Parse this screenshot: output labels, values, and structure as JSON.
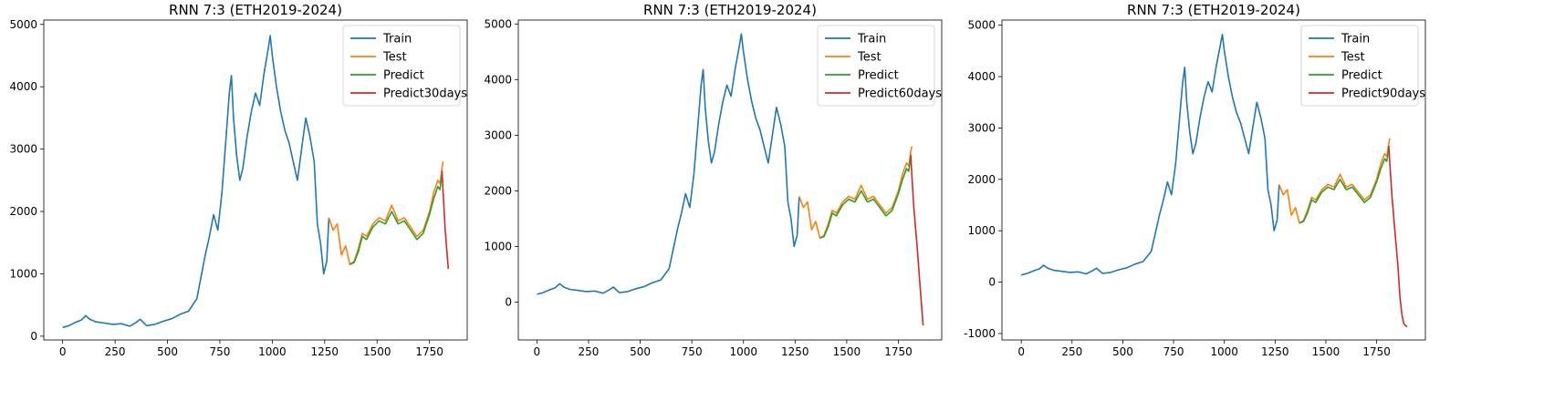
{
  "chart_data": [
    {
      "type": "line",
      "title": "RNN 7:3 (ETH2019-2024)",
      "xlabel": "",
      "ylabel": "",
      "xlim": [
        -90,
        1930
      ],
      "ylim": [
        -60,
        5070
      ],
      "xticks": [
        "0",
        "250",
        "500",
        "750",
        "1000",
        "1250",
        "1500",
        "1750"
      ],
      "yticks": [
        "0",
        "1000",
        "2000",
        "3000",
        "4000",
        "5000"
      ],
      "legend_position": "top-right",
      "series": [
        {
          "name": "Train",
          "color": "#1f77b4",
          "x": [
            0,
            30,
            60,
            90,
            110,
            130,
            160,
            200,
            240,
            280,
            320,
            350,
            370,
            400,
            440,
            480,
            520,
            560,
            600,
            640,
            680,
            700,
            720,
            740,
            760,
            780,
            795,
            805,
            815,
            830,
            845,
            860,
            880,
            900,
            920,
            940,
            960,
            980,
            990,
            1000,
            1020,
            1040,
            1060,
            1080,
            1100,
            1120,
            1140,
            1160,
            1180,
            1200,
            1215,
            1230,
            1245,
            1260,
            1270
          ],
          "y": [
            140,
            170,
            220,
            260,
            330,
            270,
            230,
            210,
            190,
            200,
            160,
            220,
            270,
            170,
            190,
            240,
            280,
            350,
            400,
            600,
            1300,
            1600,
            1950,
            1700,
            2300,
            3200,
            3900,
            4180,
            3500,
            2900,
            2500,
            2700,
            3200,
            3600,
            3900,
            3700,
            4200,
            4600,
            4820,
            4500,
            4000,
            3600,
            3300,
            3100,
            2800,
            2500,
            3000,
            3500,
            3200,
            2800,
            1800,
            1500,
            1000,
            1200,
            1900
          ]
        },
        {
          "name": "Test",
          "color": "#ff7f0e",
          "x": [
            1270,
            1290,
            1310,
            1330,
            1350,
            1370,
            1390,
            1410,
            1430,
            1450,
            1480,
            1510,
            1540,
            1570,
            1600,
            1630,
            1660,
            1690,
            1720,
            1750,
            1770,
            1790,
            1800,
            1810,
            1815
          ],
          "y": [
            1900,
            1700,
            1800,
            1300,
            1450,
            1150,
            1200,
            1400,
            1650,
            1600,
            1800,
            1900,
            1850,
            2100,
            1850,
            1900,
            1750,
            1600,
            1700,
            2000,
            2300,
            2500,
            2450,
            2700,
            2800
          ]
        },
        {
          "name": "Predict",
          "color": "#2ca02c",
          "x": [
            1370,
            1390,
            1410,
            1430,
            1450,
            1480,
            1510,
            1540,
            1570,
            1600,
            1630,
            1660,
            1690,
            1720,
            1750,
            1770,
            1790,
            1800,
            1810
          ],
          "y": [
            1150,
            1180,
            1350,
            1600,
            1550,
            1750,
            1850,
            1800,
            2000,
            1800,
            1850,
            1700,
            1550,
            1650,
            1950,
            2200,
            2400,
            2350,
            2600
          ]
        },
        {
          "name": "Predict30days",
          "color": "#d62728",
          "x": [
            1810,
            1815,
            1825,
            1840
          ],
          "y": [
            2650,
            2300,
            1700,
            1080
          ]
        }
      ]
    },
    {
      "type": "line",
      "title": "RNN 7:3 (ETH2019-2024)",
      "xlabel": "",
      "ylabel": "",
      "xlim": [
        -90,
        1960
      ],
      "ylim": [
        -680,
        5070
      ],
      "xticks": [
        "0",
        "250",
        "500",
        "750",
        "1000",
        "1250",
        "1500",
        "1750"
      ],
      "yticks": [
        "0",
        "1000",
        "2000",
        "3000",
        "4000",
        "5000"
      ],
      "legend_position": "top-right",
      "series": [
        {
          "name": "Train",
          "color": "#1f77b4",
          "x": [
            0,
            30,
            60,
            90,
            110,
            130,
            160,
            200,
            240,
            280,
            320,
            350,
            370,
            400,
            440,
            480,
            520,
            560,
            600,
            640,
            680,
            700,
            720,
            740,
            760,
            780,
            795,
            805,
            815,
            830,
            845,
            860,
            880,
            900,
            920,
            940,
            960,
            980,
            990,
            1000,
            1020,
            1040,
            1060,
            1080,
            1100,
            1120,
            1140,
            1160,
            1180,
            1200,
            1215,
            1230,
            1245,
            1260,
            1270
          ],
          "y": [
            140,
            170,
            220,
            260,
            330,
            270,
            230,
            210,
            190,
            200,
            160,
            220,
            270,
            170,
            190,
            240,
            280,
            350,
            400,
            600,
            1300,
            1600,
            1950,
            1700,
            2300,
            3200,
            3900,
            4180,
            3500,
            2900,
            2500,
            2700,
            3200,
            3600,
            3900,
            3700,
            4200,
            4600,
            4820,
            4500,
            4000,
            3600,
            3300,
            3100,
            2800,
            2500,
            3000,
            3500,
            3200,
            2800,
            1800,
            1500,
            1000,
            1200,
            1900
          ]
        },
        {
          "name": "Test",
          "color": "#ff7f0e",
          "x": [
            1270,
            1290,
            1310,
            1330,
            1350,
            1370,
            1390,
            1410,
            1430,
            1450,
            1480,
            1510,
            1540,
            1570,
            1600,
            1630,
            1660,
            1690,
            1720,
            1750,
            1770,
            1790,
            1800,
            1810,
            1815
          ],
          "y": [
            1900,
            1700,
            1800,
            1300,
            1450,
            1150,
            1200,
            1400,
            1650,
            1600,
            1800,
            1900,
            1850,
            2100,
            1850,
            1900,
            1750,
            1600,
            1700,
            2000,
            2300,
            2500,
            2450,
            2700,
            2800
          ]
        },
        {
          "name": "Predict",
          "color": "#2ca02c",
          "x": [
            1370,
            1390,
            1410,
            1430,
            1450,
            1480,
            1510,
            1540,
            1570,
            1600,
            1630,
            1660,
            1690,
            1720,
            1750,
            1770,
            1790,
            1800,
            1810
          ],
          "y": [
            1150,
            1180,
            1350,
            1600,
            1550,
            1750,
            1850,
            1800,
            2000,
            1800,
            1850,
            1700,
            1550,
            1650,
            1950,
            2200,
            2400,
            2350,
            2600
          ]
        },
        {
          "name": "Predict60days",
          "color": "#d62728",
          "x": [
            1810,
            1815,
            1825,
            1840,
            1855,
            1870
          ],
          "y": [
            2650,
            2300,
            1700,
            1050,
            300,
            -420
          ]
        }
      ]
    },
    {
      "type": "line",
      "title": "RNN 7:3 (ETH2019-2024)",
      "xlabel": "",
      "ylabel": "",
      "xlim": [
        -95,
        1990
      ],
      "ylim": [
        -1125,
        5100
      ],
      "xticks": [
        "0",
        "250",
        "500",
        "750",
        "1000",
        "1250",
        "1500",
        "1750"
      ],
      "yticks": [
        "-1000",
        "0",
        "1000",
        "2000",
        "3000",
        "4000",
        "5000"
      ],
      "legend_position": "top-right",
      "series": [
        {
          "name": "Train",
          "color": "#1f77b4",
          "x": [
            0,
            30,
            60,
            90,
            110,
            130,
            160,
            200,
            240,
            280,
            320,
            350,
            370,
            400,
            440,
            480,
            520,
            560,
            600,
            640,
            680,
            700,
            720,
            740,
            760,
            780,
            795,
            805,
            815,
            830,
            845,
            860,
            880,
            900,
            920,
            940,
            960,
            980,
            990,
            1000,
            1020,
            1040,
            1060,
            1080,
            1100,
            1120,
            1140,
            1160,
            1180,
            1200,
            1215,
            1230,
            1245,
            1260,
            1270
          ],
          "y": [
            140,
            170,
            220,
            260,
            330,
            270,
            230,
            210,
            190,
            200,
            160,
            220,
            270,
            170,
            190,
            240,
            280,
            350,
            400,
            600,
            1300,
            1600,
            1950,
            1700,
            2300,
            3200,
            3900,
            4180,
            3500,
            2900,
            2500,
            2700,
            3200,
            3600,
            3900,
            3700,
            4200,
            4600,
            4820,
            4500,
            4000,
            3600,
            3300,
            3100,
            2800,
            2500,
            3000,
            3500,
            3200,
            2800,
            1800,
            1500,
            1000,
            1200,
            1900
          ]
        },
        {
          "name": "Test",
          "color": "#ff7f0e",
          "x": [
            1270,
            1290,
            1310,
            1330,
            1350,
            1370,
            1390,
            1410,
            1430,
            1450,
            1480,
            1510,
            1540,
            1570,
            1600,
            1630,
            1660,
            1690,
            1720,
            1750,
            1770,
            1790,
            1800,
            1810,
            1815
          ],
          "y": [
            1900,
            1700,
            1800,
            1300,
            1450,
            1150,
            1200,
            1400,
            1650,
            1600,
            1800,
            1900,
            1850,
            2100,
            1850,
            1900,
            1750,
            1600,
            1700,
            2000,
            2300,
            2500,
            2450,
            2700,
            2800
          ]
        },
        {
          "name": "Predict",
          "color": "#2ca02c",
          "x": [
            1370,
            1390,
            1410,
            1430,
            1450,
            1480,
            1510,
            1540,
            1570,
            1600,
            1630,
            1660,
            1690,
            1720,
            1750,
            1770,
            1790,
            1800,
            1810
          ],
          "y": [
            1150,
            1180,
            1350,
            1600,
            1550,
            1750,
            1850,
            1800,
            2000,
            1800,
            1850,
            1700,
            1550,
            1650,
            1950,
            2200,
            2400,
            2350,
            2600
          ]
        },
        {
          "name": "Predict90days",
          "color": "#d62728",
          "x": [
            1810,
            1815,
            1825,
            1840,
            1855,
            1865,
            1875,
            1885,
            1900
          ],
          "y": [
            2650,
            2300,
            1700,
            1000,
            300,
            -300,
            -650,
            -820,
            -870
          ]
        }
      ]
    }
  ]
}
